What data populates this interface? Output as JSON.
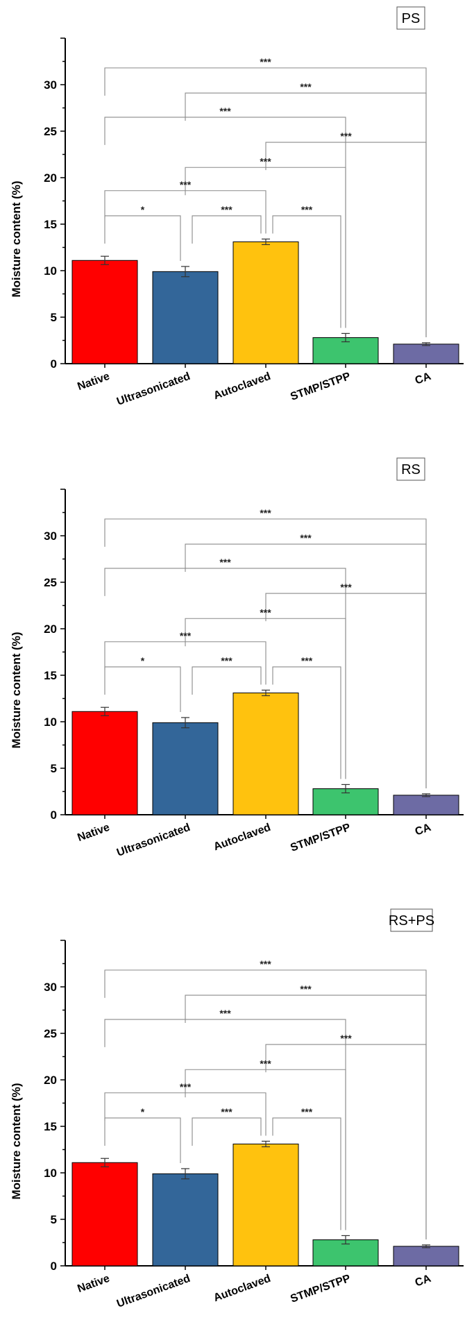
{
  "chart_data": [
    {
      "type": "bar",
      "panel_label": "PS",
      "ylabel": "Moisture content (%)",
      "categories": [
        "Native",
        "Ultrasonicated",
        "Autoclaved",
        "STMP/STPP",
        "CA"
      ],
      "values": [
        11.1,
        9.9,
        13.1,
        2.8,
        2.1
      ],
      "errors": [
        0.45,
        0.55,
        0.3,
        0.45,
        0.15
      ],
      "colors": [
        "#ff0000",
        "#336699",
        "#ffc20e",
        "#3dc46e",
        "#6d6ba4"
      ],
      "ylim": [
        0,
        35
      ],
      "yticks": [
        0,
        5,
        10,
        15,
        20,
        25,
        30
      ],
      "significance": [
        {
          "from": 0,
          "to": 4,
          "level": 31.8,
          "label": "***"
        },
        {
          "from": 1,
          "to": 4,
          "level": 29.1,
          "label": "***"
        },
        {
          "from": 0,
          "to": 3,
          "level": 26.5,
          "label": "***"
        },
        {
          "from": 2,
          "to": 4,
          "level": 23.8,
          "label": "***"
        },
        {
          "from": 1,
          "to": 3,
          "level": 21.1,
          "label": "***"
        },
        {
          "from": 0,
          "to": 2,
          "level": 18.6,
          "label": "***"
        },
        {
          "from": 0,
          "to": 1,
          "level": 15.9,
          "label": "*"
        },
        {
          "from": 1,
          "to": 2,
          "level": 15.9,
          "label": "***"
        },
        {
          "from": 2,
          "to": 3,
          "level": 15.9,
          "label": "***"
        }
      ]
    },
    {
      "type": "bar",
      "panel_label": "RS",
      "ylabel": "Moisture content (%)",
      "categories": [
        "Native",
        "Ultrasonicated",
        "Autoclaved",
        "STMP/STPP",
        "CA"
      ],
      "values": [
        11.1,
        9.9,
        13.1,
        2.8,
        2.1
      ],
      "errors": [
        0.45,
        0.55,
        0.3,
        0.45,
        0.15
      ],
      "colors": [
        "#ff0000",
        "#336699",
        "#ffc20e",
        "#3dc46e",
        "#6d6ba4"
      ],
      "ylim": [
        0,
        35
      ],
      "yticks": [
        0,
        5,
        10,
        15,
        20,
        25,
        30
      ],
      "significance": [
        {
          "from": 0,
          "to": 4,
          "level": 31.8,
          "label": "***"
        },
        {
          "from": 1,
          "to": 4,
          "level": 29.1,
          "label": "***"
        },
        {
          "from": 0,
          "to": 3,
          "level": 26.5,
          "label": "***"
        },
        {
          "from": 2,
          "to": 4,
          "level": 23.8,
          "label": "***"
        },
        {
          "from": 1,
          "to": 3,
          "level": 21.1,
          "label": "***"
        },
        {
          "from": 0,
          "to": 2,
          "level": 18.6,
          "label": "***"
        },
        {
          "from": 0,
          "to": 1,
          "level": 15.9,
          "label": "*"
        },
        {
          "from": 1,
          "to": 2,
          "level": 15.9,
          "label": "***"
        },
        {
          "from": 2,
          "to": 3,
          "level": 15.9,
          "label": "***"
        }
      ]
    },
    {
      "type": "bar",
      "panel_label": "RS+PS",
      "ylabel": "Moisture content (%)",
      "categories": [
        "Native",
        "Ultrasonicated",
        "Autoclaved",
        "STMP/STPP",
        "CA"
      ],
      "values": [
        11.1,
        9.9,
        13.1,
        2.8,
        2.1
      ],
      "errors": [
        0.45,
        0.55,
        0.3,
        0.45,
        0.15
      ],
      "colors": [
        "#ff0000",
        "#336699",
        "#ffc20e",
        "#3dc46e",
        "#6d6ba4"
      ],
      "ylim": [
        0,
        35
      ],
      "yticks": [
        0,
        5,
        10,
        15,
        20,
        25,
        30
      ],
      "significance": [
        {
          "from": 0,
          "to": 4,
          "level": 31.8,
          "label": "***"
        },
        {
          "from": 1,
          "to": 4,
          "level": 29.1,
          "label": "***"
        },
        {
          "from": 0,
          "to": 3,
          "level": 26.5,
          "label": "***"
        },
        {
          "from": 2,
          "to": 4,
          "level": 23.8,
          "label": "***"
        },
        {
          "from": 1,
          "to": 3,
          "level": 21.1,
          "label": "***"
        },
        {
          "from": 0,
          "to": 2,
          "level": 18.6,
          "label": "***"
        },
        {
          "from": 0,
          "to": 1,
          "level": 15.9,
          "label": "*"
        },
        {
          "from": 1,
          "to": 2,
          "level": 15.9,
          "label": "***"
        },
        {
          "from": 2,
          "to": 3,
          "level": 15.9,
          "label": "***"
        }
      ]
    }
  ]
}
